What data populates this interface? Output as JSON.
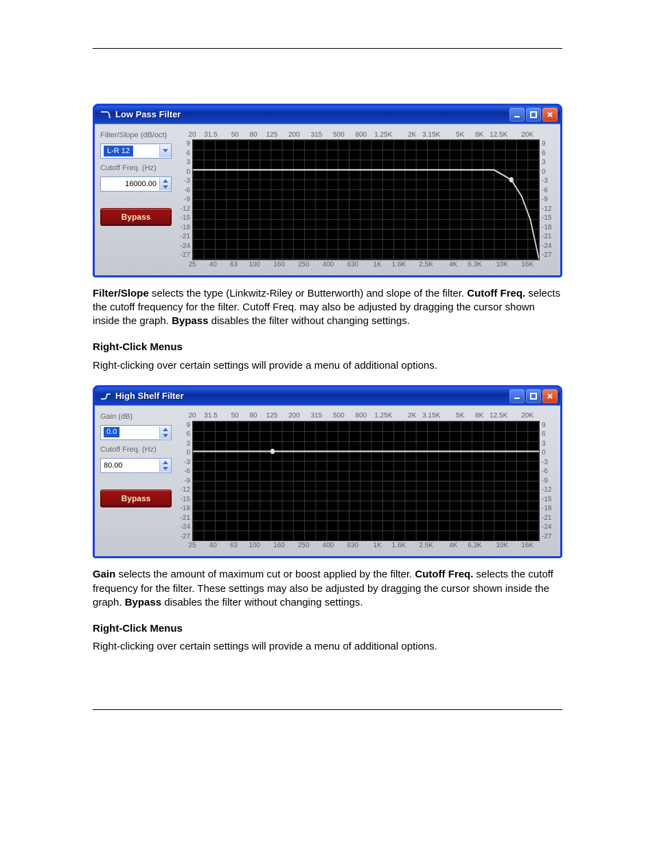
{
  "shared": {
    "y_ticks": [
      "9",
      "6",
      "3",
      "0",
      "-3",
      "-6",
      "-9",
      "-12",
      "-15",
      "-18",
      "-21",
      "-24",
      "-27"
    ],
    "top_freqs": [
      "20",
      "31.5",
      "50",
      "80",
      "125",
      "200",
      "315",
      "500",
      "800",
      "1.25K",
      "2K",
      "3.15K",
      "5K",
      "8K",
      "12.5K",
      "20K"
    ],
    "bot_freqs": [
      "25",
      "40",
      "63",
      "100",
      "160",
      "250",
      "400",
      "630",
      "1K",
      "1.6K",
      "2.5K",
      "4K",
      "6.3K",
      "10K",
      "16K"
    ],
    "y_min": -27,
    "y_max": 9,
    "grid_y_lines": 12,
    "grid_x_lines": 31,
    "curve_color": "#d6d6d6",
    "marker_color": "#e0e0e0",
    "grid_color": "#373737",
    "bg_color": "#000000",
    "right_click_note": "Right-clicking over certain settings will provide a menu of additional options."
  },
  "win_controls": {
    "min_tooltip": "Minimize",
    "max_tooltip": "Maximize",
    "close_tooltip": "Close"
  },
  "lowpass": {
    "title": "Low Pass Filter",
    "labels": {
      "filter_slope": "Filter/Slope (dB/oct)",
      "cutoff": "Cutoff Freq. (Hz)"
    },
    "filter_value": "L-R 12",
    "cutoff_value": "16000.00",
    "bypass_label": "Bypass",
    "curve_points": [
      [
        0,
        0
      ],
      [
        0.8,
        0
      ],
      [
        0.87,
        0
      ],
      [
        0.92,
        -3
      ],
      [
        0.95,
        -8
      ],
      [
        0.975,
        -15
      ],
      [
        1.0,
        -27
      ]
    ],
    "marker": [
      0.92,
      -3
    ],
    "desc": {
      "l1a": "Filter/Slope",
      "l1b": " selects the type (Linkwitz-Riley or Butterworth) and slope of the filter. ",
      "l2a": "Cutoff Freq.",
      "l2b": " selects the cutoff frequency for the filter. Cutoff Freq. may also be adjusted by dragging the cursor shown inside the graph. ",
      "l3a": "Bypass",
      "l3b": " disables the filter without changing settings."
    },
    "rc_head": "Right-Click Menus"
  },
  "highshelf": {
    "title": "High Shelf Filter",
    "labels": {
      "gain": "Gain (dB)",
      "cutoff": "Cutoff Freq. (Hz)"
    },
    "gain_value": "0.0",
    "cutoff_value": "80.00",
    "bypass_label": "Bypass",
    "curve_points": [
      [
        0,
        0
      ],
      [
        1,
        0
      ]
    ],
    "marker": [
      0.23,
      0
    ],
    "desc": {
      "l1a": "Gain",
      "l1b": " selects the amount of maximum cut or boost applied by the filter. ",
      "l2a": "Cutoff Freq.",
      "l2b": " selects the cutoff frequency for the filter. These settings may also be adjusted by dragging the cursor shown inside the graph. ",
      "l3a": "Bypass",
      "l3b": " disables the filter without changing settings."
    },
    "rc_head": "Right-Click Menus"
  }
}
